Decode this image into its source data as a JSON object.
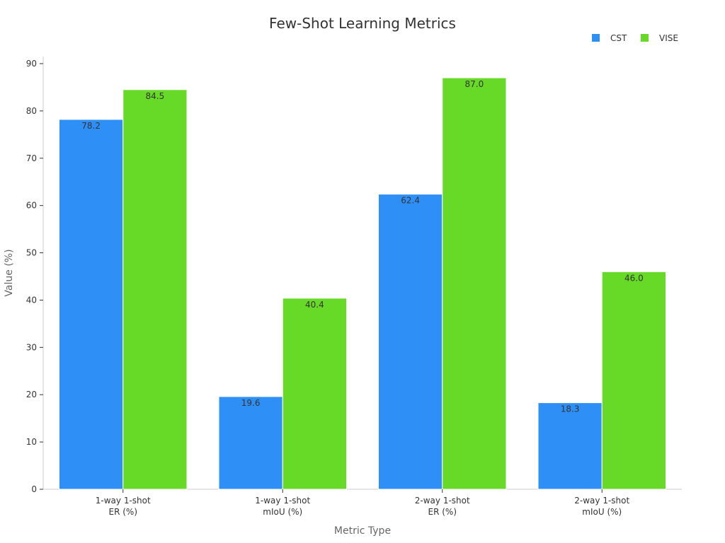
{
  "chart_data": {
    "type": "bar",
    "title": "Few-Shot Learning Metrics",
    "xlabel": "Metric Type",
    "ylabel": "Value (%)",
    "ylim": [
      0,
      90
    ],
    "yticks": [
      0,
      10,
      20,
      30,
      40,
      50,
      60,
      70,
      80,
      90
    ],
    "grid": false,
    "legend_position": "top-right",
    "categories": [
      [
        "1-way 1-shot",
        "ER (%)"
      ],
      [
        "1-way 1-shot",
        "mIoU (%)"
      ],
      [
        "2-way 1-shot",
        "ER (%)"
      ],
      [
        "2-way 1-shot",
        "mIoU (%)"
      ]
    ],
    "series": [
      {
        "name": "CST",
        "color": "#2E90F7",
        "values": [
          78.2,
          19.6,
          62.4,
          18.3
        ]
      },
      {
        "name": "VISE",
        "color": "#66DA26",
        "values": [
          84.5,
          40.4,
          87.0,
          46.0
        ]
      }
    ]
  }
}
